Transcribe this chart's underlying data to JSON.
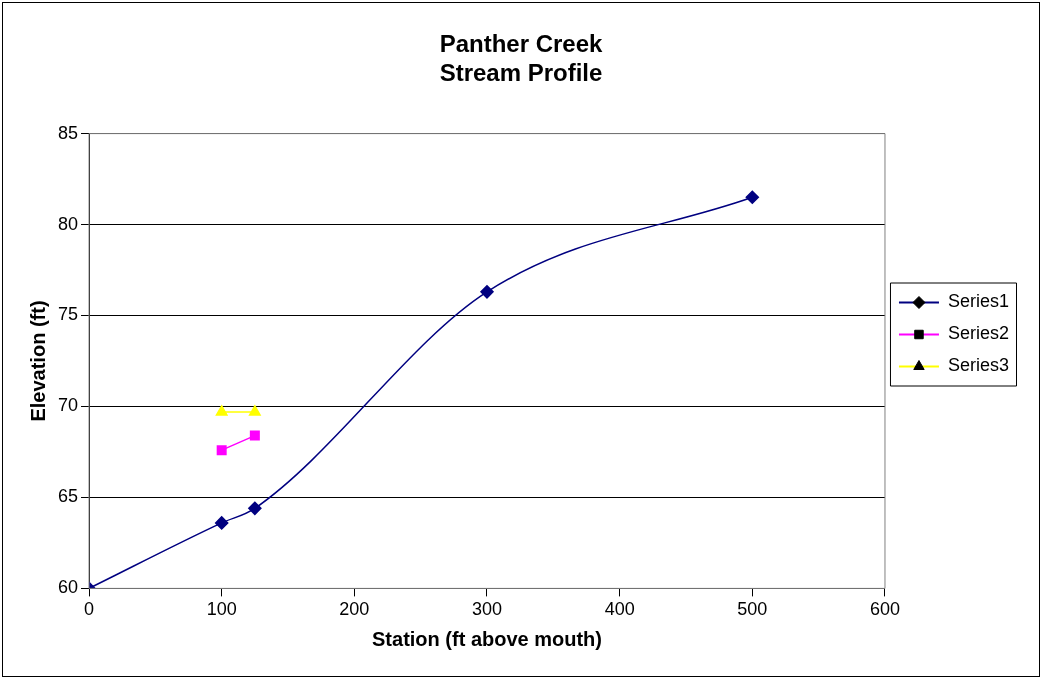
{
  "chart_data": {
    "type": "line",
    "title": [
      "Panther Creek",
      "Stream Profile"
    ],
    "xlabel": "Station (ft above mouth)",
    "ylabel": "Elevation (ft)",
    "xlim": [
      0,
      600
    ],
    "xticks": [
      0,
      100,
      200,
      300,
      400,
      500,
      600
    ],
    "ylim": [
      60,
      85
    ],
    "yticks": [
      60,
      65,
      70,
      75,
      80,
      85
    ],
    "grid": "y",
    "legend": "right",
    "series": [
      {
        "name": "Series1",
        "color": "#000080",
        "marker": "diamond",
        "x": [
          0,
          100,
          125,
          300,
          500
        ],
        "values": [
          60,
          63.6,
          64.4,
          76.3,
          81.5
        ]
      },
      {
        "name": "Series2",
        "color": "#ff00ff",
        "marker": "square",
        "x": [
          100,
          125
        ],
        "values": [
          67.6,
          68.4
        ]
      },
      {
        "name": "Series3",
        "color": "#ffff00",
        "marker": "triangle",
        "x": [
          100,
          125
        ],
        "values": [
          69.7,
          69.7
        ]
      }
    ]
  }
}
